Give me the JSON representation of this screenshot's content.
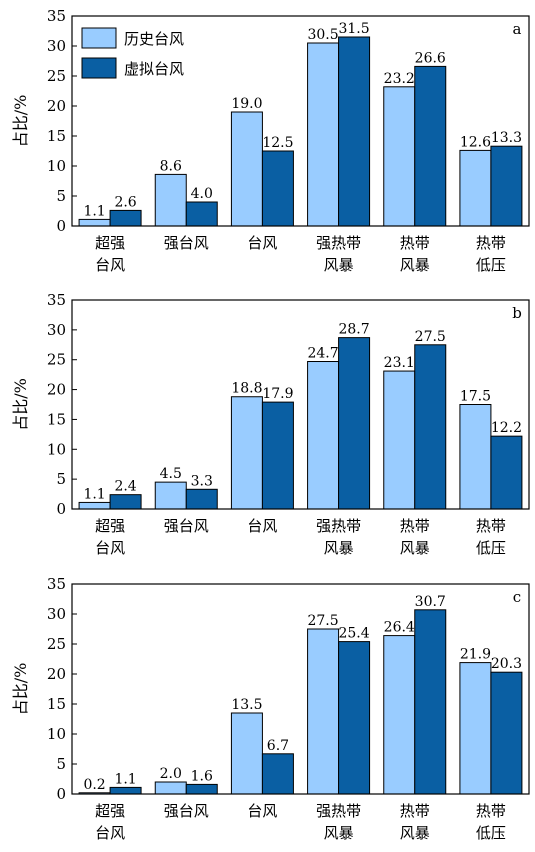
{
  "colors": {
    "historical": "#99ccff",
    "virtual": "#0a5fa3",
    "bar_stroke": "#000000"
  },
  "legend": {
    "historical": "历史台风",
    "virtual": "虚拟台风"
  },
  "chart_data": [
    {
      "type": "bar",
      "panel": "a",
      "ylabel": "占比/%",
      "ylim": [
        0,
        35
      ],
      "yticks": [
        0,
        5,
        10,
        15,
        20,
        25,
        30,
        35
      ],
      "categories": [
        [
          "超强",
          "台风"
        ],
        [
          "强台风"
        ],
        [
          "台风"
        ],
        [
          "强热带",
          "风暴"
        ],
        [
          "热带",
          "风暴"
        ],
        [
          "热带",
          "低压"
        ]
      ],
      "series": [
        {
          "name": "历史台风",
          "values": [
            1.1,
            8.6,
            19.0,
            30.5,
            23.2,
            12.6
          ]
        },
        {
          "name": "虚拟台风",
          "values": [
            2.6,
            4.0,
            12.5,
            31.5,
            26.6,
            13.3
          ]
        }
      ],
      "value_labels": [
        [
          "1.1",
          "8.6",
          "19.0",
          "30.5",
          "23.2",
          "12.6"
        ],
        [
          "2.6",
          "4.0",
          "12.5",
          "31.5",
          "26.6",
          "13.3"
        ]
      ],
      "legend": "top-left"
    },
    {
      "type": "bar",
      "panel": "b",
      "ylabel": "占比/%",
      "ylim": [
        0,
        35
      ],
      "yticks": [
        0,
        5,
        10,
        15,
        20,
        25,
        30,
        35
      ],
      "categories": [
        [
          "超强",
          "台风"
        ],
        [
          "强台风"
        ],
        [
          "台风"
        ],
        [
          "强热带",
          "风暴"
        ],
        [
          "热带",
          "风暴"
        ],
        [
          "热带",
          "低压"
        ]
      ],
      "series": [
        {
          "name": "历史台风",
          "values": [
            1.1,
            4.5,
            18.8,
            24.7,
            23.1,
            17.5
          ]
        },
        {
          "name": "虚拟台风",
          "values": [
            2.4,
            3.3,
            17.9,
            28.7,
            27.5,
            12.2
          ]
        }
      ],
      "value_labels": [
        [
          "1.1",
          "4.5",
          "18.8",
          "24.7",
          "23.1",
          "17.5"
        ],
        [
          "2.4",
          "3.3",
          "17.9",
          "28.7",
          "27.5",
          "12.2"
        ]
      ]
    },
    {
      "type": "bar",
      "panel": "c",
      "ylabel": "占比/%",
      "ylim": [
        0,
        35
      ],
      "yticks": [
        0,
        5,
        10,
        15,
        20,
        25,
        30,
        35
      ],
      "categories": [
        [
          "超强",
          "台风"
        ],
        [
          "强台风"
        ],
        [
          "台风"
        ],
        [
          "强热带",
          "风暴"
        ],
        [
          "热带",
          "风暴"
        ],
        [
          "热带",
          "低压"
        ]
      ],
      "series": [
        {
          "name": "历史台风",
          "values": [
            0.2,
            2.0,
            13.5,
            27.5,
            26.4,
            21.9
          ]
        },
        {
          "name": "虚拟台风",
          "values": [
            1.1,
            1.6,
            6.7,
            25.4,
            30.7,
            20.3
          ]
        }
      ],
      "value_labels": [
        [
          "0.2",
          "2.0",
          "13.5",
          "27.5",
          "26.4",
          "21.9"
        ],
        [
          "1.1",
          "1.6",
          "6.7",
          "25.4",
          "30.7",
          "20.3"
        ]
      ]
    }
  ]
}
